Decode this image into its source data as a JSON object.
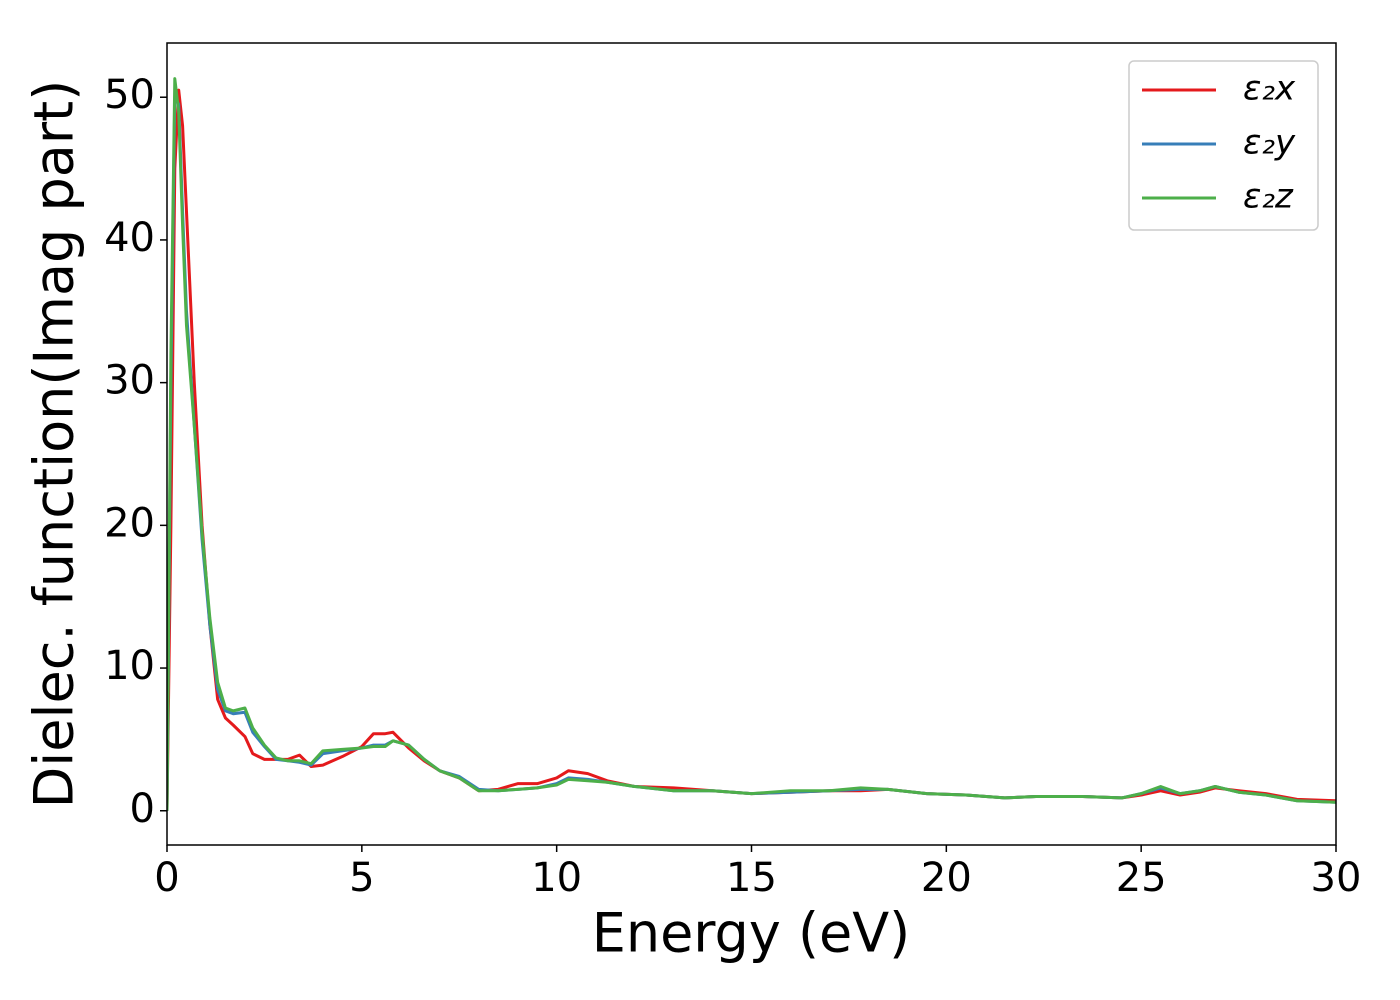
{
  "chart_data": {
    "type": "line",
    "xlabel": "Energy (eV)",
    "ylabel": "Dielec. function(Imag part)",
    "x": [
      0,
      0.1,
      0.2,
      0.3,
      0.4,
      0.5,
      0.7,
      0.9,
      1.1,
      1.3,
      1.5,
      1.7,
      2.0,
      2.2,
      2.5,
      2.8,
      3.1,
      3.4,
      3.7,
      4.0,
      4.5,
      5.0,
      5.3,
      5.6,
      5.8,
      6.2,
      6.6,
      7.0,
      7.5,
      8.0,
      8.5,
      9.0,
      9.5,
      10.0,
      10.3,
      10.8,
      11.3,
      12.0,
      13.0,
      14.0,
      15,
      16,
      17,
      17.8,
      18.5,
      19.5,
      20.5,
      21.5,
      22.3,
      23.5,
      24.5,
      25,
      25.5,
      26,
      26.5,
      26.9,
      27.5,
      28.2,
      29,
      30
    ],
    "series": [
      {
        "name": "ε₂x",
        "color": "#e41a1c",
        "values": [
          0,
          20,
          45,
          50.5,
          48,
          42,
          30,
          20,
          13,
          7.8,
          6.5,
          6,
          5.2,
          4,
          3.6,
          3.6,
          3.6,
          3.9,
          3.1,
          3.2,
          3.8,
          4.5,
          5.4,
          5.4,
          5.5,
          4.4,
          3.5,
          2.8,
          2.3,
          1.4,
          1.5,
          1.9,
          1.9,
          2.3,
          2.8,
          2.6,
          2.1,
          1.7,
          1.6,
          1.4,
          1.2,
          1.3,
          1.4,
          1.4,
          1.5,
          1.2,
          1.1,
          0.9,
          1.0,
          1.0,
          0.9,
          1.1,
          1.4,
          1.1,
          1.3,
          1.6,
          1.4,
          1.2,
          0.8,
          0.7
        ]
      },
      {
        "name": "ε₂y",
        "color": "#377eb8",
        "values": [
          0,
          30,
          50,
          49.5,
          42,
          35,
          27,
          19,
          13,
          8.5,
          7,
          6.8,
          6.9,
          5.5,
          4.5,
          3.6,
          3.5,
          3.4,
          3.2,
          4.0,
          4.2,
          4.4,
          4.6,
          4.6,
          4.9,
          4.6,
          3.6,
          2.8,
          2.4,
          1.5,
          1.4,
          1.5,
          1.6,
          1.9,
          2.3,
          2.2,
          2.0,
          1.7,
          1.4,
          1.4,
          1.2,
          1.3,
          1.4,
          1.5,
          1.5,
          1.2,
          1.1,
          0.9,
          1.0,
          1.0,
          0.9,
          1.2,
          1.6,
          1.2,
          1.4,
          1.7,
          1.3,
          1.1,
          0.7,
          0.6
        ]
      },
      {
        "name": "ε₂z",
        "color": "#4daf4a",
        "values": [
          0,
          32,
          51.3,
          49,
          41,
          34,
          27,
          19.5,
          13.5,
          9,
          7.2,
          7.0,
          7.2,
          5.8,
          4.6,
          3.7,
          3.5,
          3.5,
          3.3,
          4.2,
          4.3,
          4.4,
          4.5,
          4.5,
          4.9,
          4.6,
          3.6,
          2.8,
          2.3,
          1.4,
          1.4,
          1.5,
          1.6,
          1.8,
          2.2,
          2.1,
          2.0,
          1.7,
          1.4,
          1.4,
          1.2,
          1.4,
          1.4,
          1.6,
          1.5,
          1.2,
          1.1,
          0.9,
          1.0,
          1.0,
          0.9,
          1.2,
          1.7,
          1.2,
          1.4,
          1.7,
          1.3,
          1.1,
          0.7,
          0.6
        ]
      }
    ],
    "xlim": [
      0,
      30
    ],
    "xticks": [
      0,
      5,
      10,
      15,
      20,
      25,
      30
    ],
    "ylim": [
      -2.4,
      53.8
    ],
    "yticks": [
      0,
      10,
      20,
      30,
      40,
      50
    ],
    "grid": false,
    "legend": "upper right"
  }
}
